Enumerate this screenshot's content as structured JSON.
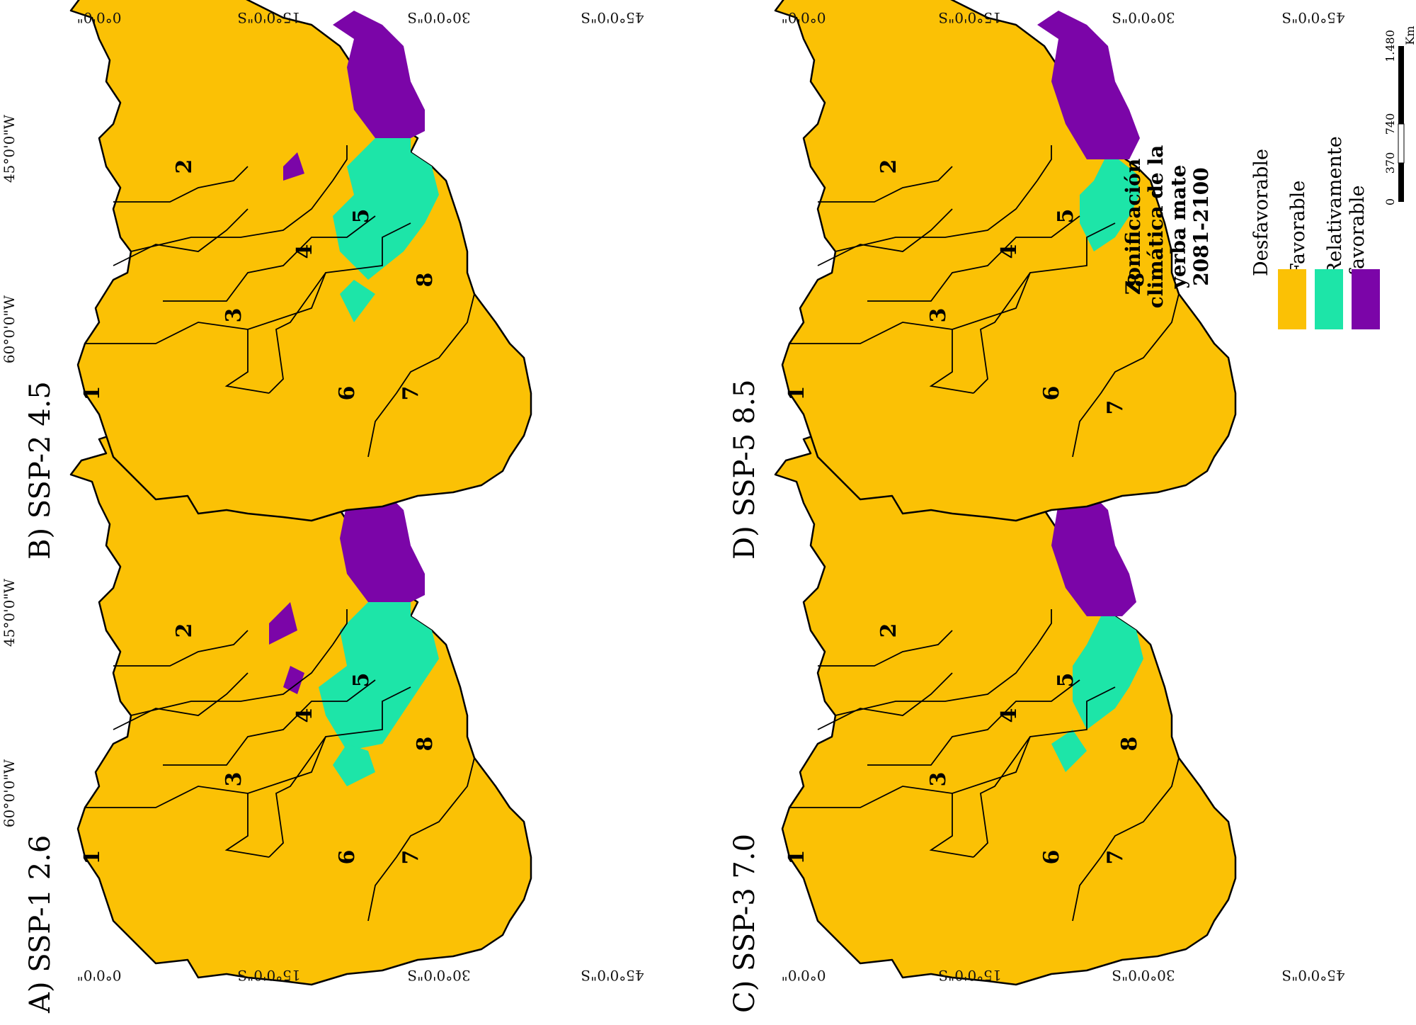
{
  "figure": {
    "colors": {
      "desfavorable": "#FBC105",
      "favorable": "#1DE5A8",
      "relativamente_favorable": "#7B05A8",
      "outline": "#000000"
    },
    "coordinates": {
      "longitude": [
        "60°0'0\"W",
        "45°0'0\"W"
      ],
      "latitude": [
        "0°0'0\"",
        "15°0'0\"S",
        "30°0'0\"S",
        "45°0'0\"S"
      ]
    },
    "panels": [
      {
        "label": "A) SSP-1 2.6",
        "regions": [
          "1",
          "2",
          "3",
          "4",
          "5",
          "6",
          "7",
          "8"
        ]
      },
      {
        "label": "B) SSP-2 4.5",
        "regions": [
          "1",
          "2",
          "3",
          "4",
          "5",
          "6",
          "7",
          "8"
        ]
      },
      {
        "label": "C) SSP-3 7.0",
        "regions": [
          "1",
          "2",
          "3",
          "4",
          "5",
          "6",
          "7",
          "8"
        ]
      },
      {
        "label": "D) SSP-5 8.5",
        "regions": [
          "1",
          "2",
          "3",
          "4",
          "5",
          "6",
          "7",
          "8"
        ]
      }
    ],
    "legend": {
      "title_lines": [
        "Zonificación",
        "climática de la",
        "yerba mate",
        "2081-2100"
      ],
      "items": [
        {
          "label": "Desfavorable",
          "color": "#FBC105"
        },
        {
          "label": "Favorable",
          "color": "#1DE5A8"
        },
        {
          "label_lines": [
            "Relativamente",
            "favorable"
          ],
          "color": "#7B05A8"
        }
      ]
    },
    "scale_bar": {
      "ticks": [
        "0",
        "370",
        "740",
        "1.480"
      ],
      "unit": "Km"
    }
  }
}
